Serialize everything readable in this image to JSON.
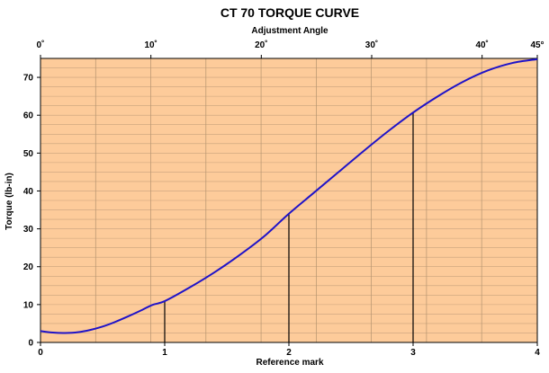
{
  "chart_data": {
    "type": "line",
    "title": "CT 70 TORQUE CURVE",
    "xlabel": "Reference mark",
    "ylabel": "Torque (lb-in)",
    "x2label": "Adjustment Angle",
    "xlim": [
      0,
      4
    ],
    "ylim": [
      0,
      75
    ],
    "x_ticks": [
      "0",
      "1",
      "2",
      "3",
      "4"
    ],
    "y_ticks": [
      "0",
      "10",
      "20",
      "30",
      "40",
      "50",
      "60",
      "70"
    ],
    "x2_ticks": [
      {
        "label": "0˚",
        "angle": 0
      },
      {
        "label": "10˚",
        "angle": 10
      },
      {
        "label": "20˚",
        "angle": 20
      },
      {
        "label": "30˚",
        "angle": 30
      },
      {
        "label": "40˚",
        "angle": 40
      },
      {
        "label": "45°",
        "angle": 45
      }
    ],
    "x2_max": 45,
    "grid": true,
    "y_minor_step": 2.5,
    "x_minor_step": 0.444,
    "series": [
      {
        "color": "#1f13c8",
        "x": [
          0,
          0.1,
          0.2,
          0.3,
          0.4,
          0.5,
          0.6,
          0.7,
          0.8,
          0.9,
          1.0,
          1.2,
          1.4,
          1.6,
          1.8,
          2.0,
          2.2,
          2.4,
          2.6,
          2.8,
          3.0,
          3.2,
          3.4,
          3.6,
          3.8,
          4.0
        ],
        "values": [
          3.0,
          2.6,
          2.5,
          2.7,
          3.3,
          4.2,
          5.4,
          6.8,
          8.3,
          9.9,
          10.9,
          14.5,
          18.5,
          23.0,
          28.0,
          34.0,
          39.5,
          45.0,
          50.5,
          55.8,
          60.7,
          65.0,
          68.8,
          71.8,
          73.8,
          74.8
        ]
      }
    ],
    "drop_lines": [
      {
        "x": 1,
        "y": 10.9
      },
      {
        "x": 2,
        "y": 34.0
      },
      {
        "x": 3,
        "y": 60.7
      }
    ],
    "colors": {
      "plot_background": "#fdcb9a",
      "curve": "#1f13c8",
      "drop_line": "#000000"
    }
  }
}
